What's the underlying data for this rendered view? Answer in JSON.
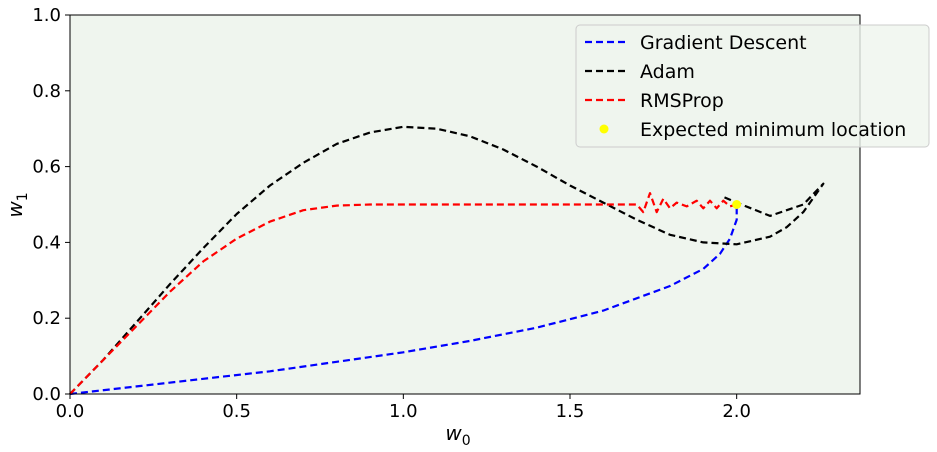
{
  "chart_data": {
    "type": "line",
    "xlabel": "w",
    "xlabel_sub": "0",
    "ylabel": "w",
    "ylabel_sub": "1",
    "xlim": [
      0,
      2.37
    ],
    "ylim": [
      0,
      1.0
    ],
    "xticks": [
      0.0,
      0.5,
      1.0,
      1.5,
      2.0
    ],
    "xtick_labels": [
      "0.0",
      "0.5",
      "1.0",
      "1.5",
      "2.0"
    ],
    "yticks": [
      0.0,
      0.2,
      0.4,
      0.6,
      0.8,
      1.0
    ],
    "ytick_labels": [
      "0.0",
      "0.2",
      "0.4",
      "0.6",
      "0.8",
      "1.0"
    ],
    "grid": false,
    "background_color": "#eff5ee",
    "legend_position": "top-right",
    "series": [
      {
        "name": "Gradient Descent",
        "color": "#0000ff",
        "style": "dashed",
        "x": [
          0,
          0.2,
          0.4,
          0.6,
          0.8,
          1.0,
          1.2,
          1.4,
          1.6,
          1.8,
          1.9,
          1.95,
          1.98,
          2.0,
          2.0
        ],
        "y": [
          0,
          0.02,
          0.04,
          0.06,
          0.085,
          0.11,
          0.14,
          0.175,
          0.22,
          0.285,
          0.33,
          0.37,
          0.41,
          0.46,
          0.5
        ]
      },
      {
        "name": "Adam",
        "color": "#000000",
        "style": "dashed",
        "x": [
          0,
          0.1,
          0.2,
          0.3,
          0.4,
          0.5,
          0.6,
          0.7,
          0.8,
          0.9,
          1.0,
          1.1,
          1.2,
          1.3,
          1.4,
          1.5,
          1.6,
          1.7,
          1.8,
          1.9,
          2.0,
          2.1,
          2.15,
          2.2,
          2.26,
          2.2,
          2.1,
          2.0,
          1.96
        ],
        "y": [
          0,
          0.09,
          0.19,
          0.29,
          0.385,
          0.475,
          0.55,
          0.61,
          0.66,
          0.69,
          0.705,
          0.7,
          0.68,
          0.645,
          0.6,
          0.55,
          0.505,
          0.46,
          0.42,
          0.4,
          0.395,
          0.415,
          0.44,
          0.48,
          0.555,
          0.5,
          0.47,
          0.505,
          0.52
        ]
      },
      {
        "name": "RMSProp",
        "color": "#ff0000",
        "style": "dashed",
        "x": [
          0,
          0.1,
          0.2,
          0.3,
          0.4,
          0.5,
          0.6,
          0.7,
          0.8,
          0.9,
          1.0,
          1.2,
          1.4,
          1.6,
          1.7,
          1.72,
          1.74,
          1.76,
          1.78,
          1.8,
          1.82,
          1.85,
          1.88,
          1.9,
          1.92,
          1.94,
          1.96,
          1.98,
          2.0
        ],
        "y": [
          0,
          0.09,
          0.18,
          0.27,
          0.35,
          0.41,
          0.455,
          0.485,
          0.497,
          0.5,
          0.5,
          0.5,
          0.5,
          0.5,
          0.5,
          0.48,
          0.53,
          0.48,
          0.515,
          0.49,
          0.505,
          0.495,
          0.51,
          0.49,
          0.51,
          0.49,
          0.51,
          0.495,
          0.5
        ]
      }
    ],
    "markers": [
      {
        "name": "Expected minimum location",
        "color": "#ffff00",
        "x": 2.0,
        "y": 0.5
      }
    ]
  }
}
